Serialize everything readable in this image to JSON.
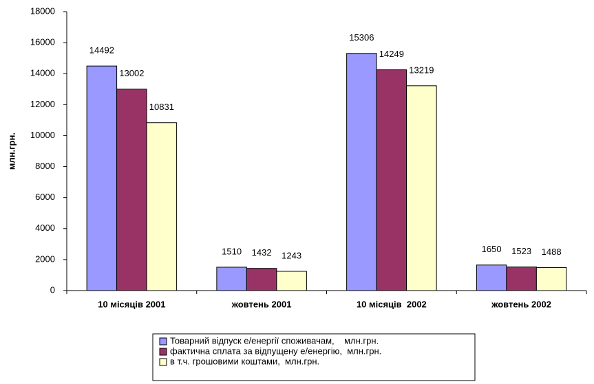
{
  "chart_data": {
    "type": "bar",
    "y_label": "млн.грн.",
    "categories": [
      "10 місяців 2001",
      "жовтень 2001",
      "10 місяців  2002",
      "жовтень 2002"
    ],
    "series": [
      {
        "name": "Товарний відпуск е/енергії споживачам,    млн.грн.",
        "color": "#9999ff",
        "values": [
          14492,
          1510,
          15306,
          1650
        ]
      },
      {
        "name": "фактична сплата за відпущену е/енергію,  млн.грн.",
        "color": "#993366",
        "values": [
          13002,
          1432,
          14249,
          1523
        ]
      },
      {
        "name": "в т.ч. грошовими коштами,  млн.грн.",
        "color": "#ffffcc",
        "values": [
          10831,
          1243,
          13219,
          1488
        ]
      }
    ],
    "ylim": [
      0,
      18000
    ],
    "yticks": [
      0,
      2000,
      4000,
      6000,
      8000,
      10000,
      12000,
      14000,
      16000,
      18000
    ],
    "grid": false,
    "legend": "bottom"
  }
}
